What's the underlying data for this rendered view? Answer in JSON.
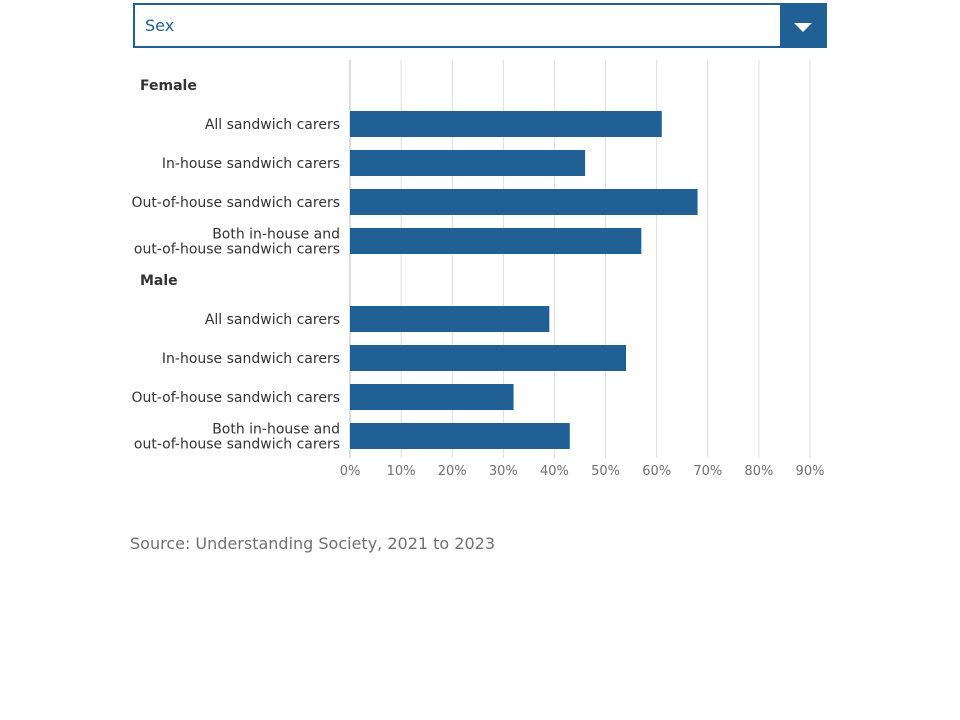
{
  "filter": {
    "selected": "Sex",
    "icon": "chevron-down-icon"
  },
  "chart_data": {
    "type": "bar",
    "orientation": "horizontal",
    "color": "#206095",
    "groups": [
      {
        "name": "Female",
        "categories": [
          "All sandwich carers",
          "In-house sandwich carers",
          "Out-of-house sandwich carers",
          "Both in-house and out-of-house sandwich carers"
        ],
        "category_lines": [
          [
            "All sandwich carers"
          ],
          [
            "In-house sandwich carers"
          ],
          [
            "Out-of-house sandwich carers"
          ],
          [
            "Both in-house and",
            "out-of-house sandwich carers"
          ]
        ],
        "values": [
          61,
          46,
          68,
          57
        ]
      },
      {
        "name": "Male",
        "categories": [
          "All sandwich carers",
          "In-house sandwich carers",
          "Out-of-house sandwich carers",
          "Both in-house and out-of-house sandwich carers"
        ],
        "category_lines": [
          [
            "All sandwich carers"
          ],
          [
            "In-house sandwich carers"
          ],
          [
            "Out-of-house sandwich carers"
          ],
          [
            "Both in-house and",
            "out-of-house sandwich carers"
          ]
        ],
        "values": [
          39,
          54,
          32,
          43
        ]
      }
    ],
    "xlim": [
      0,
      90
    ],
    "xticks": [
      0,
      10,
      20,
      30,
      40,
      50,
      60,
      70,
      80,
      90
    ],
    "xtick_labels": [
      "0%",
      "10%",
      "20%",
      "30%",
      "40%",
      "50%",
      "60%",
      "70%",
      "80%",
      "90%"
    ],
    "grid": true,
    "legend": "none"
  },
  "source": "Source: Understanding Society, 2021 to 2023"
}
